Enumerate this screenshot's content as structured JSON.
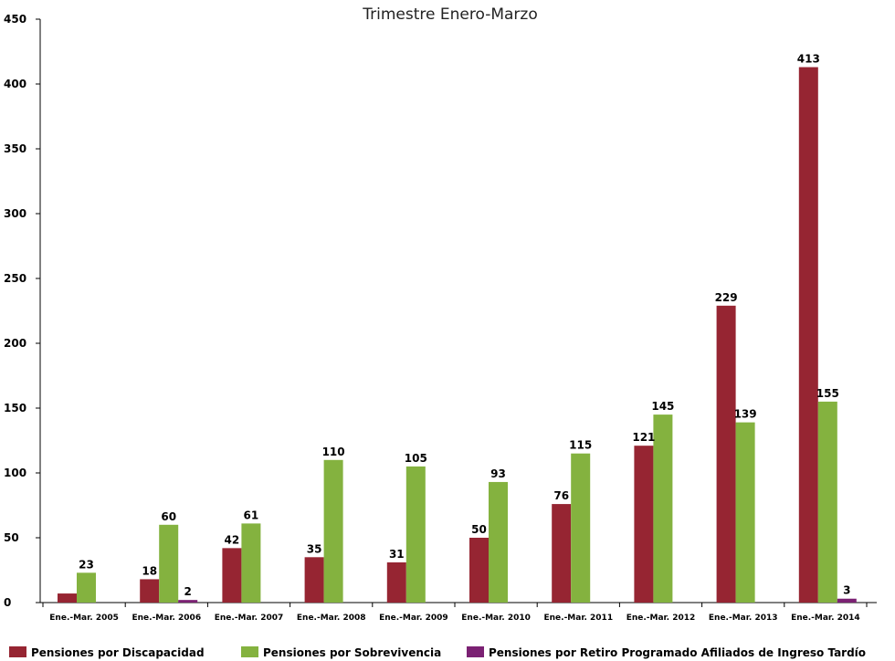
{
  "chart_data": {
    "type": "bar",
    "title": "Trimestre Enero-Marzo",
    "xlabel": "",
    "ylabel": "",
    "ylim": [
      0,
      450
    ],
    "yticks": [
      0,
      50,
      100,
      150,
      200,
      250,
      300,
      350,
      400,
      450
    ],
    "grid": false,
    "legend_position": "bottom",
    "categories": [
      "Ene.-Mar. 2005",
      "Ene.-Mar. 2006",
      "Ene.-Mar. 2007",
      "Ene.-Mar. 2008",
      "Ene.-Mar. 2009",
      "Ene.-Mar. 2010",
      "Ene.-Mar. 2011",
      "Ene.-Mar. 2012",
      "Ene.-Mar. 2013",
      "Ene.-Mar. 2014"
    ],
    "series": [
      {
        "name": "Pensiones por Discapacidad",
        "color": "#962532",
        "values": [
          7,
          18,
          42,
          35,
          31,
          50,
          76,
          121,
          229,
          413
        ],
        "labels": [
          "",
          "18",
          "42",
          "35",
          "31",
          "50",
          "76",
          "121",
          "229",
          "413"
        ]
      },
      {
        "name": "Pensiones por Sobrevivencia",
        "color": "#84b23f",
        "values": [
          23,
          60,
          61,
          110,
          105,
          93,
          115,
          145,
          139,
          155
        ],
        "labels": [
          "23",
          "60",
          "61",
          "110",
          "105",
          "93",
          "115",
          "145",
          "139",
          "155"
        ]
      },
      {
        "name": "Pensiones por Retiro Programado Afiliados de Ingreso Tardío",
        "color": "#7b2173",
        "values": [
          0,
          2,
          0,
          0,
          0,
          0,
          0,
          0,
          0,
          3
        ],
        "labels": [
          "",
          "2",
          "",
          "",
          "",
          "",
          "",
          "",
          "",
          "3"
        ]
      }
    ]
  }
}
